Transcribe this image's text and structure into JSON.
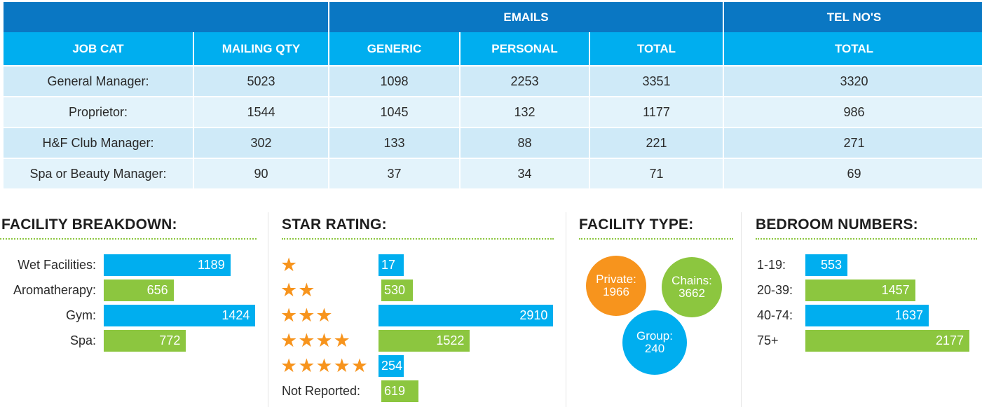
{
  "table": {
    "group_headers": {
      "emails": "EMAILS",
      "tel": "TEL NO'S"
    },
    "columns": [
      "JOB CAT",
      "MAILING QTY",
      "GENERIC",
      "PERSONAL",
      "TOTAL",
      "TOTAL"
    ],
    "rows": [
      [
        "General Manager:",
        "5023",
        "1098",
        "2253",
        "3351",
        "3320"
      ],
      [
        "Proprietor:",
        "1544",
        "1045",
        "132",
        "1177",
        "986"
      ],
      [
        "H&F Club Manager:",
        "302",
        "133",
        "88",
        "221",
        "271"
      ],
      [
        "Spa or Beauty Manager:",
        "90",
        "37",
        "34",
        "71",
        "69"
      ]
    ]
  },
  "colors": {
    "dark_blue": "#0a77c3",
    "blue": "#00aeef",
    "green": "#8cc63f",
    "orange": "#f7941d"
  },
  "chart_data": [
    {
      "type": "bar",
      "title": "FACILITY BREAKDOWN:",
      "categories": [
        "Wet Facilities:",
        "Aromatherapy:",
        "Gym:",
        "Spa:"
      ],
      "values": [
        1189,
        656,
        1424,
        772
      ],
      "colors": [
        "blue",
        "green",
        "blue",
        "green"
      ]
    },
    {
      "type": "bar",
      "title": "STAR RATING:",
      "categories": [
        "1 star",
        "2 stars",
        "3 stars",
        "4 stars",
        "5 stars",
        "Not Reported:"
      ],
      "star_counts": [
        1,
        2,
        3,
        4,
        5,
        0
      ],
      "values": [
        17,
        530,
        2910,
        1522,
        254,
        619
      ],
      "colors": [
        "blue",
        "green",
        "blue",
        "green",
        "blue",
        "green"
      ]
    },
    {
      "type": "bubble",
      "title": "FACILITY TYPE:",
      "items": [
        {
          "label": "Private:",
          "value": 1966,
          "color": "orange"
        },
        {
          "label": "Chains:",
          "value": 3662,
          "color": "green"
        },
        {
          "label": "Group:",
          "value": 240,
          "color": "blue"
        }
      ]
    },
    {
      "type": "bar",
      "title": "BEDROOM NUMBERS:",
      "categories": [
        "1-19:",
        "20-39:",
        "40-74:",
        "75+"
      ],
      "values": [
        553,
        1457,
        1637,
        2177
      ],
      "colors": [
        "blue",
        "green",
        "blue",
        "green"
      ]
    }
  ]
}
